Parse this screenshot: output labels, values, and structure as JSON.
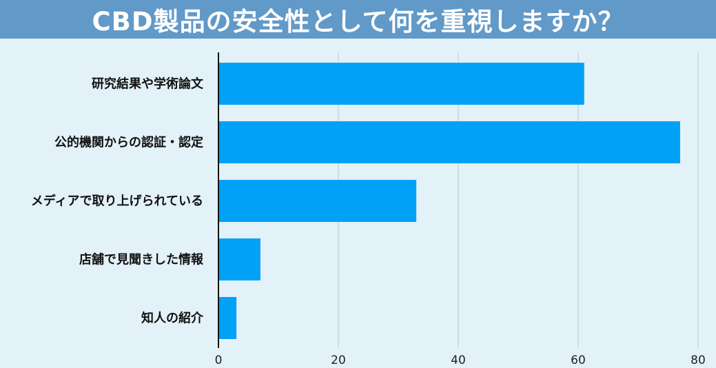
{
  "title": "CBD製品の安全性として何を重視しますか？",
  "colors": {
    "header": "#6199c8",
    "background": "#e3f1f8",
    "bar": "#00a1f6",
    "grid": "#b9c7cf",
    "axis": "#111111"
  },
  "chart_data": {
    "type": "bar",
    "orientation": "horizontal",
    "title": "CBD製品の安全性として何を重視しますか？",
    "categories": [
      "研究結果や学術論文",
      "公的機関からの認証・認定",
      "メディアで取り上げられている",
      "店舗で見聞きした情報",
      "知人の紹介"
    ],
    "values": [
      61,
      77,
      33,
      7,
      3
    ],
    "xlim": [
      0,
      80
    ],
    "x_ticks": [
      "0",
      "20",
      "40",
      "60",
      "80"
    ],
    "grid": true,
    "legend": "none"
  }
}
